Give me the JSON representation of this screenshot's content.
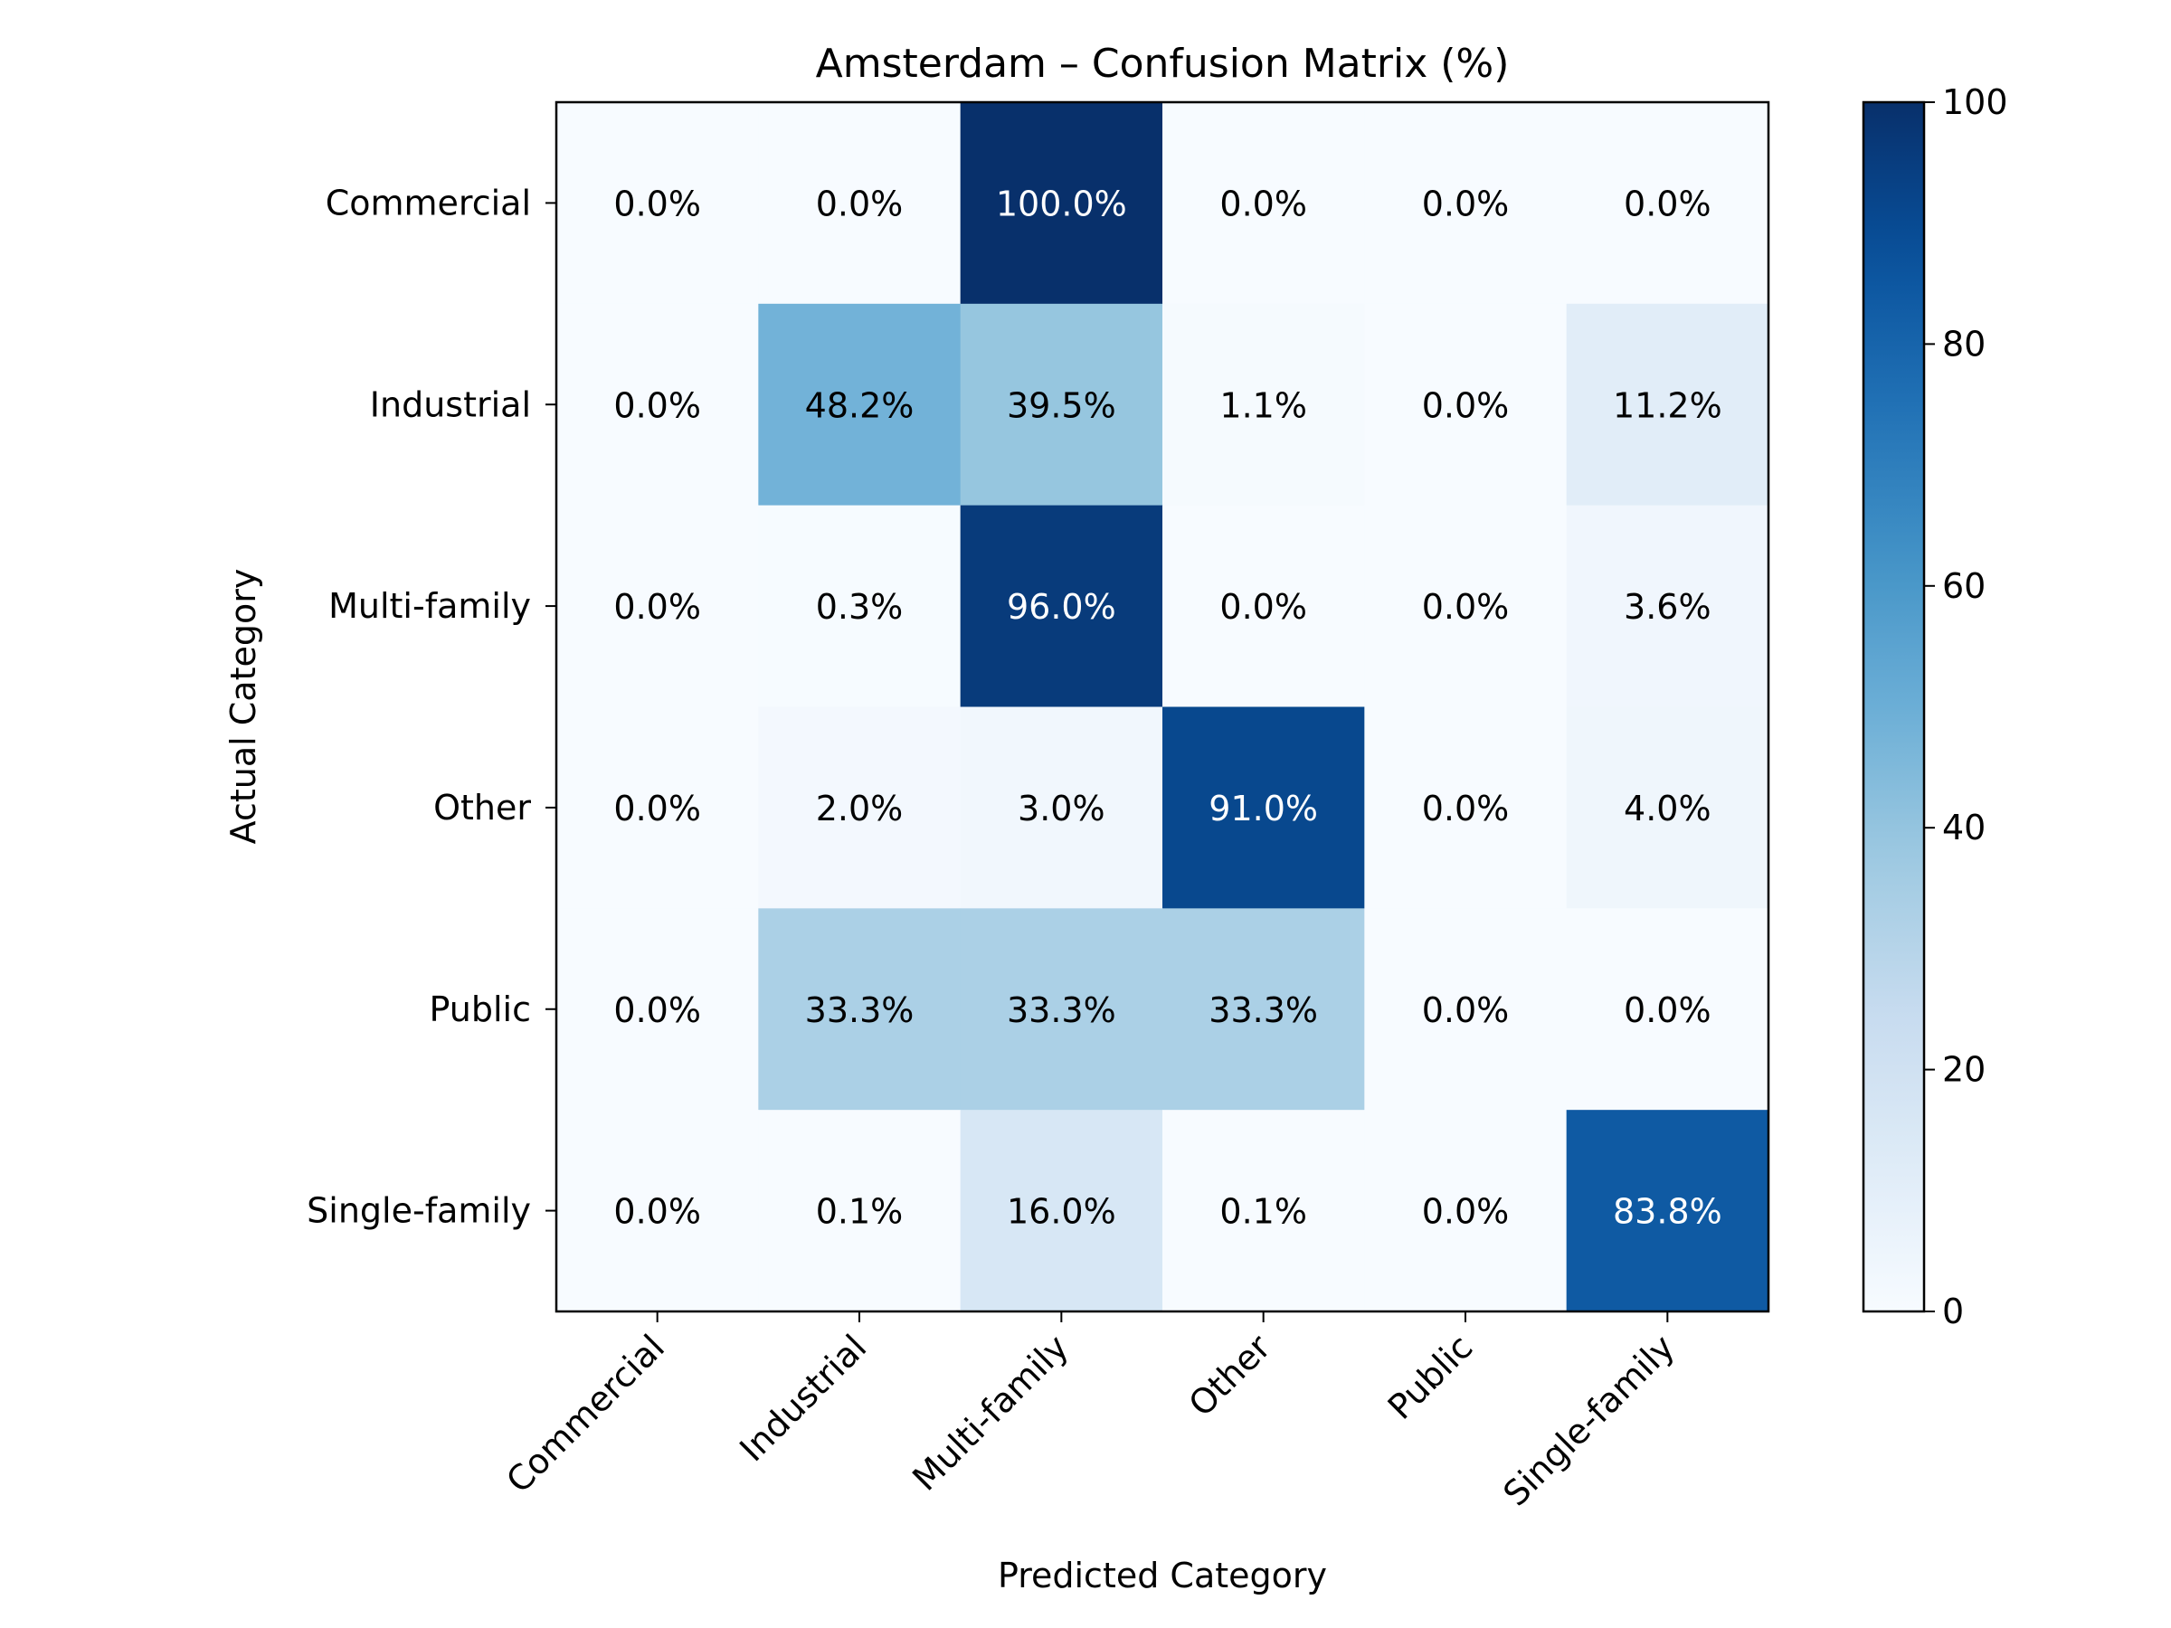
{
  "chart_data": {
    "type": "heatmap",
    "title": "Amsterdam – Confusion Matrix (%)",
    "xlabel": "Predicted Category",
    "ylabel": "Actual Category",
    "x_categories": [
      "Commercial",
      "Industrial",
      "Multi-family",
      "Other",
      "Public",
      "Single-family"
    ],
    "y_categories": [
      "Commercial",
      "Industrial",
      "Multi-family",
      "Other",
      "Public",
      "Single-family"
    ],
    "values": [
      [
        0.0,
        0.0,
        100.0,
        0.0,
        0.0,
        0.0
      ],
      [
        0.0,
        48.2,
        39.5,
        1.1,
        0.0,
        11.2
      ],
      [
        0.0,
        0.3,
        96.0,
        0.0,
        0.0,
        3.6
      ],
      [
        0.0,
        2.0,
        3.0,
        91.0,
        0.0,
        4.0
      ],
      [
        0.0,
        33.3,
        33.3,
        33.3,
        0.0,
        0.0
      ],
      [
        0.0,
        0.1,
        16.0,
        0.1,
        0.0,
        83.8
      ]
    ],
    "cell_labels": [
      [
        "0.0%",
        "0.0%",
        "100.0%",
        "0.0%",
        "0.0%",
        "0.0%"
      ],
      [
        "0.0%",
        "48.2%",
        "39.5%",
        "1.1%",
        "0.0%",
        "11.2%"
      ],
      [
        "0.0%",
        "0.3%",
        "96.0%",
        "0.0%",
        "0.0%",
        "3.6%"
      ],
      [
        "0.0%",
        "2.0%",
        "3.0%",
        "91.0%",
        "0.0%",
        "4.0%"
      ],
      [
        "0.0%",
        "33.3%",
        "33.3%",
        "33.3%",
        "0.0%",
        "0.0%"
      ],
      [
        "0.0%",
        "0.1%",
        "16.0%",
        "0.1%",
        "0.0%",
        "83.8%"
      ]
    ],
    "colormap": "Blues",
    "colorbar": {
      "range": [
        0,
        100
      ],
      "ticks": [
        0,
        20,
        40,
        60,
        80,
        100
      ],
      "tick_labels": [
        "0",
        "20",
        "40",
        "60",
        "80",
        "100"
      ]
    },
    "grid": false
  }
}
